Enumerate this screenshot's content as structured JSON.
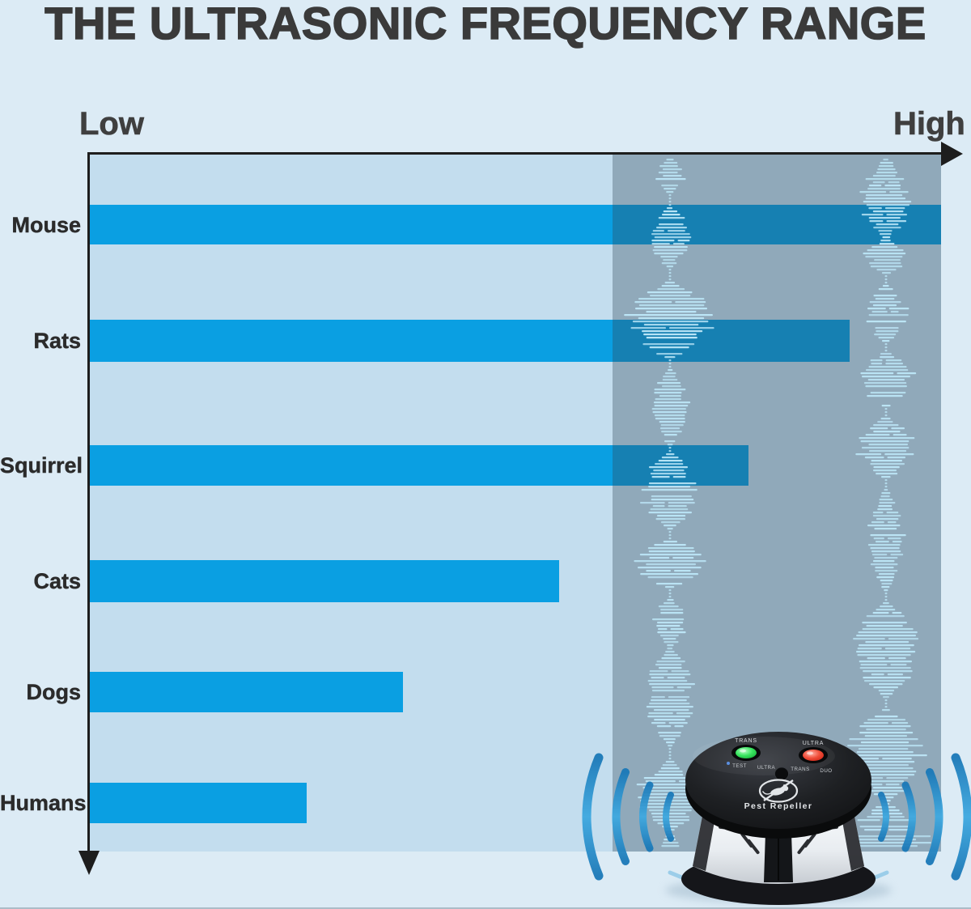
{
  "title": "THE ULTRASONIC FREQUENCY RANGE",
  "axis": {
    "low": "Low",
    "high": "High"
  },
  "chart_data": {
    "type": "bar",
    "orientation": "horizontal",
    "title": "THE ULTRASONIC FREQUENCY RANGE",
    "x_axis": {
      "low_label": "Low",
      "high_label": "High",
      "numeric_ticks": false,
      "meaning": "frequency"
    },
    "categories": [
      "Mouse",
      "Rats",
      "Squirrel",
      "Cats",
      "Dogs",
      "Humans"
    ],
    "values_percent": [
      100,
      89.3,
      77.4,
      55.1,
      36.8,
      25.5
    ],
    "ultrasonic_band": {
      "start_percent": 61.4,
      "end_percent": 100
    },
    "grid": false,
    "legend": false
  },
  "device": {
    "name_label": "Pest Repeller",
    "led_labels": [
      "TRANS",
      "ULTRA"
    ],
    "mode_labels": [
      "TEST",
      "ULTRA",
      "TRANS",
      "DUO"
    ]
  },
  "colors": {
    "page_bg": "#dcebf5",
    "chart_bg": "#c3ddee",
    "bar": "#0a9fe2",
    "ultrasonic_overlay": "rgba(47,70,84,0.34)",
    "waveform": "#bce6f7",
    "axis": "#1d1d1d",
    "title_text": "#3a3a3a",
    "label_text": "#2b2b2b",
    "wave_arc_blue": "#2a8fd0",
    "led_green": "#2ecc40",
    "led_red": "#e8241a"
  }
}
